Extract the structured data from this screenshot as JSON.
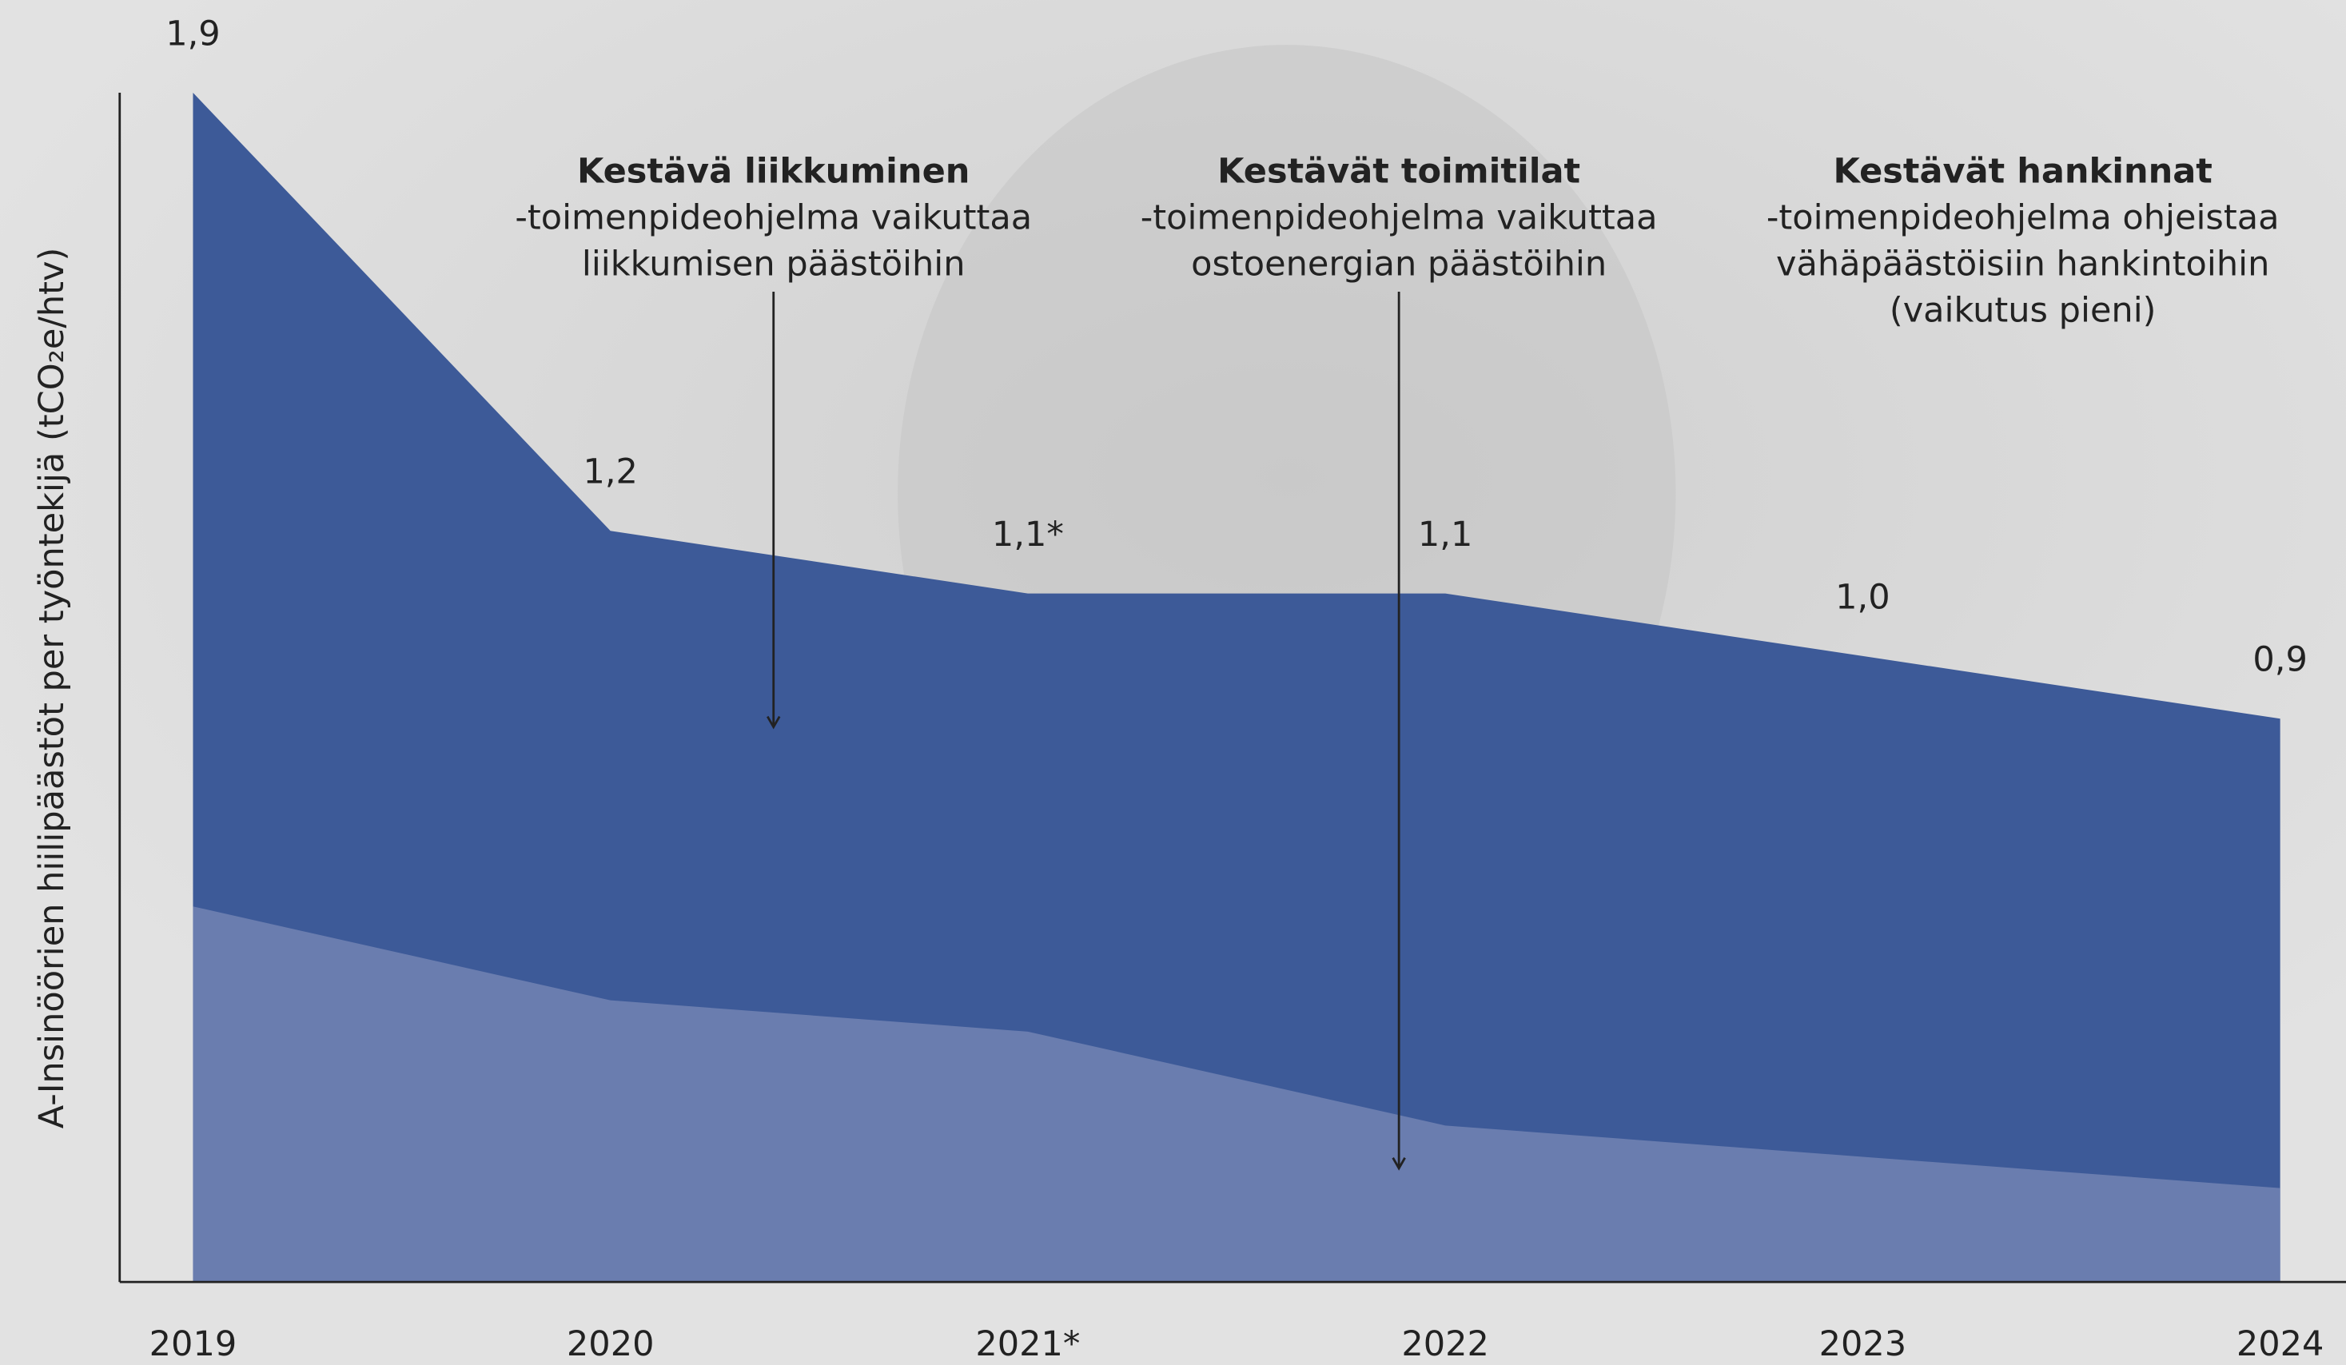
{
  "chart_data": {
    "type": "area",
    "y_label": "A-Insinöörien hiilipäästöt per työntekijä (tCO₂e/htv)",
    "categories": [
      "2019",
      "2020",
      "2021*",
      "2022",
      "2023",
      "2024"
    ],
    "series": [
      {
        "color": "#3d5a98",
        "values": [
          1.9,
          1.2,
          1.1,
          1.1,
          1.0,
          0.9
        ],
        "value_labels": [
          "1,9",
          "1,2",
          "1,1*",
          "1,1",
          "1,0",
          "0,9"
        ]
      },
      {
        "color": "#6a7daf",
        "values": [
          0.6,
          0.45,
          0.4,
          0.25,
          0.2,
          0.15
        ]
      }
    ],
    "ylim": [
      0,
      1.9
    ],
    "annotations": [
      {
        "title": "Kestävä liikkuminen",
        "lines": [
          "-toimenpideohjelma vaikuttaa",
          "liikkumisen päästöihin"
        ]
      },
      {
        "title": "Kestävät toimitilat",
        "lines": [
          "-toimenpideohjelma vaikuttaa",
          "ostoenergian päästöihin"
        ]
      },
      {
        "title": "Kestävät hankinnat",
        "lines": [
          "-toimenpideohjelma ohjeistaa",
          "vähäpäästöisiin hankintoihin",
          "(vaikutus pieni)"
        ]
      }
    ]
  }
}
